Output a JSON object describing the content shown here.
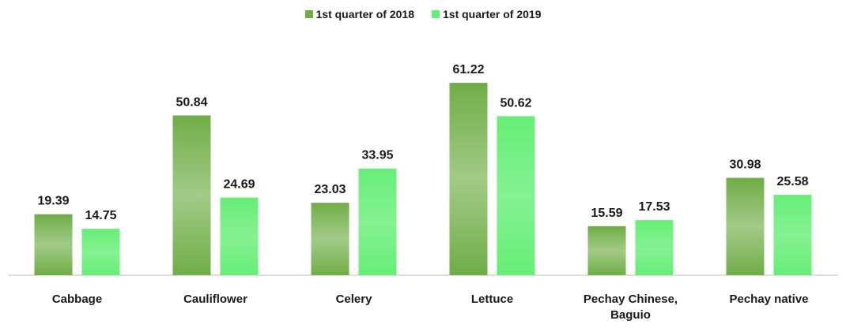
{
  "chart_data": {
    "type": "bar",
    "categories": [
      "Cabbage",
      "Cauliflower",
      "Celery",
      "Lettuce",
      "Pechay Chinese, Baguio",
      "Pechay native"
    ],
    "series": [
      {
        "name": "1st quarter of 2018",
        "color": "#70ad47",
        "values": [
          19.39,
          50.84,
          23.03,
          61.22,
          15.59,
          30.98
        ]
      },
      {
        "name": "1st quarter of 2019",
        "color": "#66ee77",
        "values": [
          14.75,
          24.69,
          33.95,
          50.62,
          17.53,
          25.58
        ]
      }
    ],
    "ylim": [
      0,
      65
    ],
    "legend": "top"
  }
}
